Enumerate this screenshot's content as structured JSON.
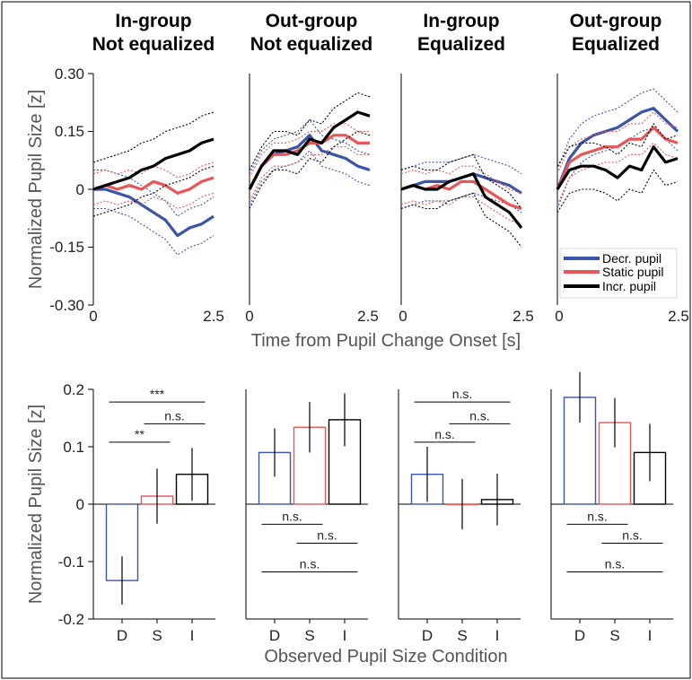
{
  "colors": {
    "decr": "#3a55a8",
    "static": "#e85555",
    "incr": "#000000"
  },
  "top_ylabel": "Normalized Pupil Size [z]",
  "top_xlabel": "Time from Pupil Change Onset [s]",
  "bottom_ylabel": "Normalized Pupil Size [z]",
  "bottom_xlabel": "Observed Pupil Size Condition",
  "panels": [
    {
      "title1": "In-group",
      "title2": "Not equalized"
    },
    {
      "title1": "Out-group",
      "title2": "Not equalized"
    },
    {
      "title1": "In-group",
      "title2": "Equalized"
    },
    {
      "title1": "Out-group",
      "title2": "Equalized"
    }
  ],
  "top_yticks": [
    "0.30",
    "0.15",
    "0",
    "-0.15",
    "-0.30"
  ],
  "top_xticks": [
    "0",
    "2.5"
  ],
  "bottom_yticks": [
    "0.2",
    "0.1",
    "0",
    "-0.1",
    "-0.2"
  ],
  "bottom_xticks": [
    "D",
    "S",
    "I"
  ],
  "legend": [
    "Decr. pupil",
    "Static pupil",
    "Incr. pupil"
  ],
  "chart_data": [
    {
      "type": "line",
      "xlabel": "Time from Pupil Change Onset [s]",
      "ylabel": "Normalized Pupil Size [z]",
      "xlim": [
        0,
        2.5
      ],
      "ylim": [
        -0.3,
        0.3
      ],
      "x": [
        0,
        0.25,
        0.5,
        0.75,
        1.0,
        1.25,
        1.5,
        1.75,
        2.0,
        2.25,
        2.5
      ],
      "panels": [
        {
          "title": "In-group Not equalized",
          "series": [
            {
              "name": "Decr. pupil",
              "values": [
                0,
                0.0,
                -0.01,
                -0.02,
                -0.04,
                -0.06,
                -0.08,
                -0.12,
                -0.1,
                -0.09,
                -0.07
              ],
              "ci": 0.05
            },
            {
              "name": "Static pupil",
              "values": [
                0,
                0.01,
                0.0,
                0.01,
                0.0,
                0.02,
                0.01,
                -0.01,
                0.0,
                0.02,
                0.03
              ],
              "ci": 0.04
            },
            {
              "name": "Incr. pupil",
              "values": [
                0,
                0.01,
                0.02,
                0.03,
                0.05,
                0.06,
                0.08,
                0.09,
                0.1,
                0.12,
                0.13
              ],
              "ci": 0.07
            }
          ]
        },
        {
          "title": "Out-group Not equalized",
          "series": [
            {
              "name": "Decr. pupil",
              "values": [
                0,
                0.06,
                0.09,
                0.1,
                0.11,
                0.14,
                0.1,
                0.09,
                0.08,
                0.06,
                0.05
              ],
              "ci": 0.04
            },
            {
              "name": "Static pupil",
              "values": [
                0,
                0.06,
                0.09,
                0.09,
                0.1,
                0.12,
                0.12,
                0.14,
                0.14,
                0.12,
                0.12
              ],
              "ci": 0.03
            },
            {
              "name": "Incr. pupil",
              "values": [
                0,
                0.06,
                0.1,
                0.1,
                0.09,
                0.13,
                0.12,
                0.16,
                0.18,
                0.2,
                0.19
              ],
              "ci": 0.05
            }
          ]
        },
        {
          "title": "In-group Equalized",
          "series": [
            {
              "name": "Decr. pupil",
              "values": [
                0,
                0.01,
                0.02,
                0.02,
                0.02,
                0.03,
                0.04,
                0.03,
                0.02,
                0.01,
                -0.01
              ],
              "ci": 0.05
            },
            {
              "name": "Static pupil",
              "values": [
                0,
                0.01,
                0.0,
                0.01,
                0.0,
                0.02,
                0.02,
                0.0,
                -0.02,
                -0.04,
                -0.05
              ],
              "ci": 0.04
            },
            {
              "name": "Incr. pupil",
              "values": [
                0,
                0.01,
                0.0,
                0.0,
                0.02,
                0.03,
                0.04,
                -0.02,
                -0.04,
                -0.06,
                -0.1
              ],
              "ci": 0.05
            }
          ]
        },
        {
          "title": "Out-group Equalized",
          "series": [
            {
              "name": "Decr. pupil",
              "values": [
                0,
                0.08,
                0.12,
                0.14,
                0.15,
                0.16,
                0.18,
                0.2,
                0.21,
                0.18,
                0.15
              ],
              "ci": 0.05
            },
            {
              "name": "Static pupil",
              "values": [
                0,
                0.07,
                0.09,
                0.1,
                0.11,
                0.11,
                0.13,
                0.13,
                0.16,
                0.13,
                0.12
              ],
              "ci": 0.04
            },
            {
              "name": "Incr. pupil",
              "values": [
                0,
                0.05,
                0.06,
                0.06,
                0.05,
                0.03,
                0.06,
                0.05,
                0.11,
                0.07,
                0.08
              ],
              "ci": 0.06
            }
          ]
        }
      ]
    },
    {
      "type": "bar",
      "xlabel": "Observed Pupil Size Condition",
      "ylabel": "Normalized Pupil Size [z]",
      "ylim": [
        -0.2,
        0.2
      ],
      "categories": [
        "D",
        "S",
        "I"
      ],
      "panels": [
        {
          "title": "In-group Not equalized",
          "values": [
            -0.133,
            0.014,
            0.052
          ],
          "errors": [
            0.042,
            0.048,
            0.046
          ],
          "comparisons": [
            {
              "from": 0,
              "to": 2,
              "label": "***",
              "y": 0.178
            },
            {
              "from": 0,
              "to": 1,
              "label": "**",
              "y": 0.108
            },
            {
              "from": 1,
              "to": 2,
              "label": "n.s.",
              "y": 0.14
            }
          ]
        },
        {
          "title": "Out-group Not equalized",
          "values": [
            0.09,
            0.134,
            0.147
          ],
          "errors": [
            0.042,
            0.044,
            0.046
          ],
          "comparisons": [
            {
              "from": 0,
              "to": 1,
              "label": "n.s.",
              "y": -0.035
            },
            {
              "from": 1,
              "to": 2,
              "label": "n.s.",
              "y": -0.068
            },
            {
              "from": 0,
              "to": 2,
              "label": "n.s.",
              "y": -0.118
            }
          ]
        },
        {
          "title": "In-group Equalized",
          "values": [
            0.052,
            0.0,
            0.008
          ],
          "errors": [
            0.048,
            0.044,
            0.045
          ],
          "comparisons": [
            {
              "from": 0,
              "to": 2,
              "label": "n.s.",
              "y": 0.178
            },
            {
              "from": 0,
              "to": 1,
              "label": "n.s.",
              "y": 0.108
            },
            {
              "from": 1,
              "to": 2,
              "label": "n.s.",
              "y": 0.14
            }
          ]
        },
        {
          "title": "Out-group Equalized",
          "values": [
            0.186,
            0.142,
            0.09
          ],
          "errors": [
            0.044,
            0.043,
            0.05
          ],
          "comparisons": [
            {
              "from": 0,
              "to": 1,
              "label": "n.s.",
              "y": -0.035
            },
            {
              "from": 1,
              "to": 2,
              "label": "n.s.",
              "y": -0.068
            },
            {
              "from": 0,
              "to": 2,
              "label": "n.s.",
              "y": -0.118
            }
          ]
        }
      ]
    }
  ]
}
